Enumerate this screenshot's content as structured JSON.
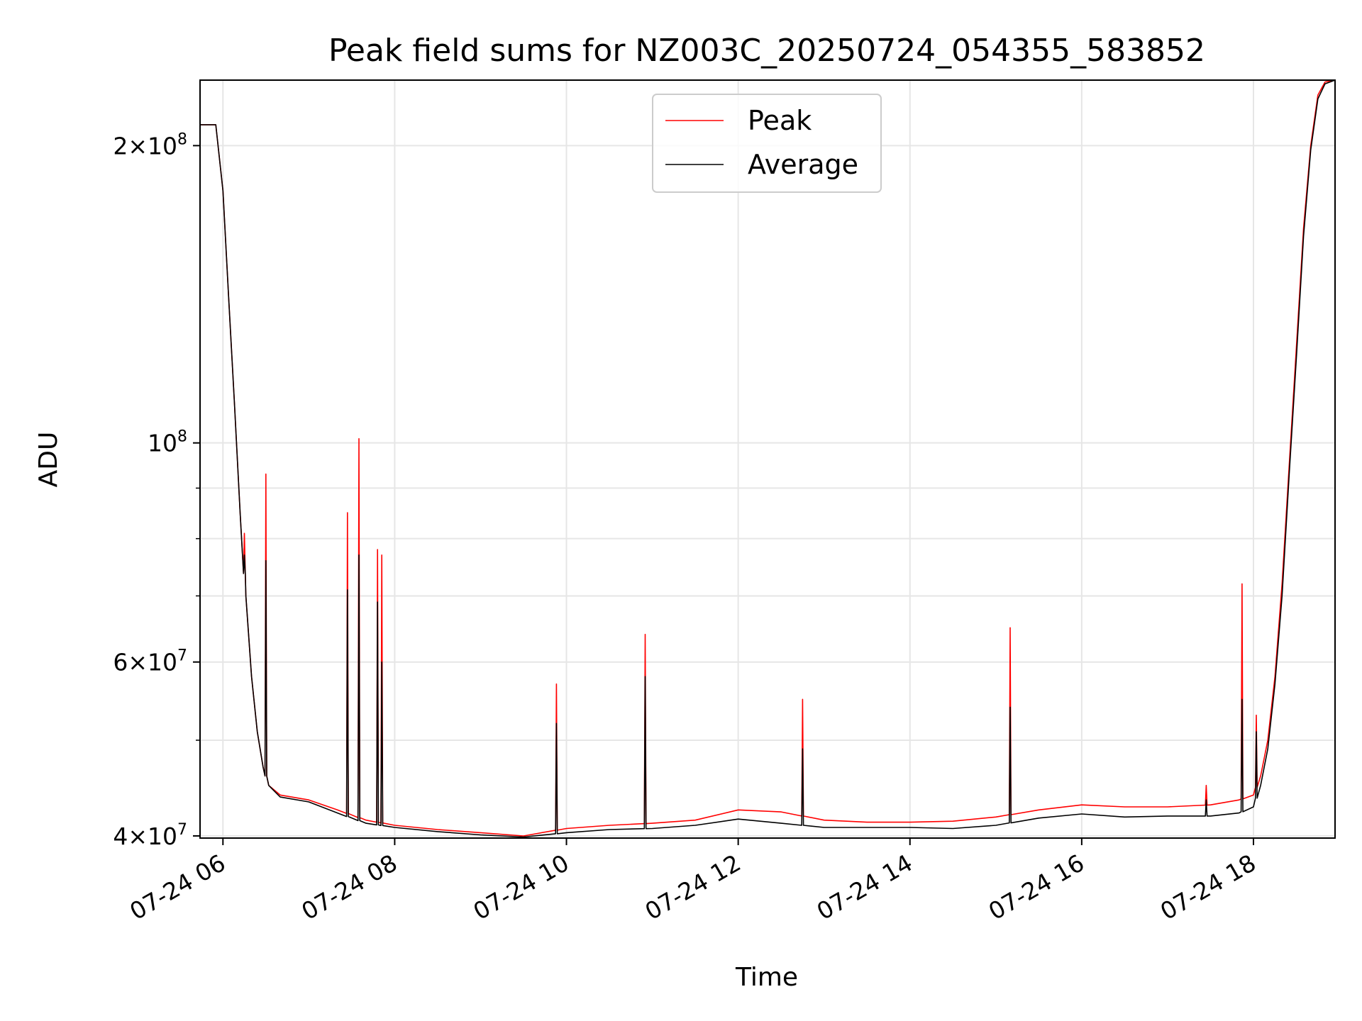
{
  "chart_data": {
    "type": "line",
    "title": "Peak field sums for NZ003C_20250724_054355_583852",
    "xlabel": "Time",
    "ylabel": "ADU",
    "yscale": "log",
    "xlim": [
      "2025-07-24T05:44",
      "2025-07-24T18:57"
    ],
    "ylim": [
      39800000,
      233000000
    ],
    "grid": true,
    "legend": {
      "placement": "top-center",
      "entries": [
        "Peak",
        "Average"
      ]
    },
    "x_ticks": [
      "07-24 06",
      "07-24 08",
      "07-24 10",
      "07-24 12",
      "07-24 14",
      "07-24 16",
      "07-24 18"
    ],
    "y_ticks": [
      {
        "label": "2×10^8",
        "mantissa": "2",
        "exp": "8",
        "value": 200000000
      },
      {
        "label": "10^8",
        "mantissa": "",
        "exp": "8",
        "value": 100000000
      },
      {
        "label": "6×10^7",
        "mantissa": "6",
        "exp": "7",
        "value": 60000000
      },
      {
        "label": "4×10^7",
        "mantissa": "4",
        "exp": "7",
        "value": 40000000
      }
    ],
    "series": [
      {
        "name": "Peak",
        "color": "#ff0000",
        "x": [
          "05:44",
          "05:55",
          "06:00",
          "06:04",
          "06:08",
          "06:12",
          "06:16",
          "06:20",
          "06:24",
          "06:28",
          "06:32",
          "06:40",
          "07:00",
          "07:20",
          "07:40",
          "08:00",
          "08:30",
          "09:00",
          "09:30",
          "10:00",
          "10:30",
          "11:00",
          "11:30",
          "12:00",
          "12:30",
          "13:00",
          "13:30",
          "14:00",
          "14:30",
          "15:00",
          "15:30",
          "16:00",
          "16:30",
          "17:00",
          "17:30",
          "17:50",
          "18:00",
          "18:05",
          "18:10",
          "18:15",
          "18:20",
          "18:25",
          "18:30",
          "18:35",
          "18:40",
          "18:45",
          "18:50",
          "18:57"
        ],
        "y": [
          210000000,
          210000000,
          180000000,
          140000000,
          110000000,
          85000000,
          70000000,
          58000000,
          51000000,
          47000000,
          45000000,
          44000000,
          43500000,
          42500000,
          41500000,
          41000000,
          40600000,
          40300000,
          40000000,
          40700000,
          41000000,
          41200000,
          41500000,
          42500000,
          42300000,
          41500000,
          41300000,
          41300000,
          41400000,
          41800000,
          42500000,
          43000000,
          42800000,
          42800000,
          43000000,
          43500000,
          44000000,
          46000000,
          50000000,
          58000000,
          72000000,
          95000000,
          125000000,
          165000000,
          200000000,
          225000000,
          232000000,
          233000000
        ]
      },
      {
        "name": "Average",
        "color": "#000000",
        "x": [
          "05:44",
          "05:55",
          "06:00",
          "06:04",
          "06:08",
          "06:12",
          "06:16",
          "06:20",
          "06:24",
          "06:28",
          "06:32",
          "06:40",
          "07:00",
          "07:20",
          "07:40",
          "08:00",
          "08:30",
          "09:00",
          "09:30",
          "10:00",
          "10:30",
          "11:00",
          "11:30",
          "12:00",
          "12:30",
          "13:00",
          "13:30",
          "14:00",
          "14:30",
          "15:00",
          "15:30",
          "16:00",
          "16:30",
          "17:00",
          "17:30",
          "17:50",
          "18:00",
          "18:05",
          "18:10",
          "18:15",
          "18:20",
          "18:25",
          "18:30",
          "18:35",
          "18:40",
          "18:45",
          "18:50",
          "18:57"
        ],
        "y": [
          210000000,
          210000000,
          180000000,
          140000000,
          110000000,
          85000000,
          70000000,
          58000000,
          51000000,
          47000000,
          45000000,
          43800000,
          43300000,
          42200000,
          41200000,
          40800000,
          40400000,
          40100000,
          39900000,
          40300000,
          40600000,
          40700000,
          41000000,
          41600000,
          41200000,
          40800000,
          40800000,
          40800000,
          40700000,
          41000000,
          41700000,
          42100000,
          41800000,
          41900000,
          41900000,
          42200000,
          42800000,
          45000000,
          49000000,
          57000000,
          70000000,
          93000000,
          122000000,
          162000000,
          198000000,
          223000000,
          231000000,
          233000000
        ]
      }
    ],
    "spikes": [
      {
        "time": "06:15",
        "peak": 81000000,
        "average": 77000000
      },
      {
        "time": "06:30",
        "peak": 93000000,
        "average": 76000000
      },
      {
        "time": "07:27",
        "peak": 85000000,
        "average": 71000000
      },
      {
        "time": "07:35",
        "peak": 101000000,
        "average": 77000000
      },
      {
        "time": "07:48",
        "peak": 78000000,
        "average": 69000000
      },
      {
        "time": "07:51",
        "peak": 77000000,
        "average": 60000000
      },
      {
        "time": "09:53",
        "peak": 57000000,
        "average": 52000000
      },
      {
        "time": "10:55",
        "peak": 64000000,
        "average": 58000000
      },
      {
        "time": "12:45",
        "peak": 55000000,
        "average": 49000000
      },
      {
        "time": "15:10",
        "peak": 65000000,
        "average": 54000000
      },
      {
        "time": "17:27",
        "peak": 45000000,
        "average": 43500000
      },
      {
        "time": "17:52",
        "peak": 72000000,
        "average": 55000000
      },
      {
        "time": "18:02",
        "peak": 53000000,
        "average": 51000000
      }
    ]
  }
}
